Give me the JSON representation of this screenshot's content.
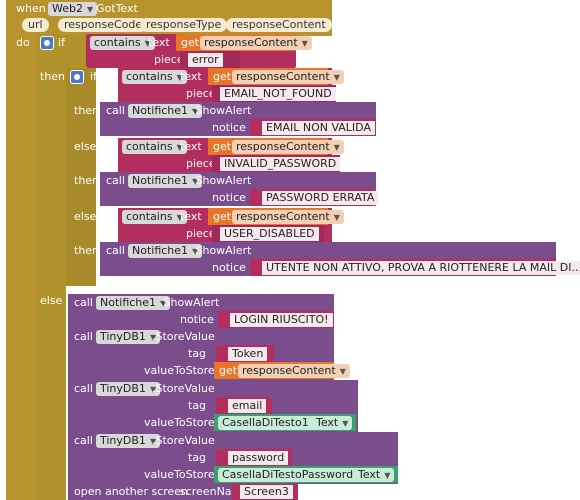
{
  "event": {
    "when": "when",
    "component": "Web2",
    "handler": "GotText",
    "params": [
      "url",
      "responseCode",
      "responseType",
      "responseContent"
    ],
    "do": "do"
  },
  "outer_if": {
    "kw_if": "if",
    "contains": "contains",
    "text_kw": "text",
    "get": "get",
    "var": "responseContent",
    "piece": "piece",
    "piece_value": "error",
    "then": "then",
    "else": "else"
  },
  "inner_if": {
    "kw_if": "if",
    "kw_then": "then",
    "kw_elseif": "else if",
    "contains": "contains",
    "text_kw": "text",
    "get": "get",
    "var": "responseContent",
    "piece": "piece",
    "call": "call",
    "component": "Notifiche1",
    "method": ".ShowAlert",
    "notice": "notice",
    "branches": [
      {
        "piece": "EMAIL_NOT_FOUND",
        "notice": "EMAIL NON VALIDA"
      },
      {
        "piece": "INVALID_PASSWORD",
        "notice": "PASSWORD ERRATA"
      },
      {
        "piece": "USER_DISABLED",
        "notice": "UTENTE NON ATTIVO, PROVA A RIOTTENERE LA MAIL DI..."
      }
    ]
  },
  "else_block": {
    "call": "call",
    "notifiche": "Notifiche1",
    "showalert": ".ShowAlert",
    "notice": "notice",
    "notice_value": "LOGIN RIUSCITO!",
    "tinydb": "TinyDB1",
    "storevalue": ".StoreValue",
    "tag": "tag",
    "valueToStore": "valueToStore",
    "get": "get",
    "store1": {
      "tag": "Token",
      "var": "responseContent"
    },
    "store2": {
      "tag": "email",
      "component": "CasellaDiTesto1",
      "prop": "Text"
    },
    "store3": {
      "tag": "password",
      "component": "CasellaDiTestoPassword1",
      "prop": "Text"
    },
    "open_screen": "open another screen",
    "screen_name_label": "screenName",
    "screen_name": "Screen3"
  }
}
